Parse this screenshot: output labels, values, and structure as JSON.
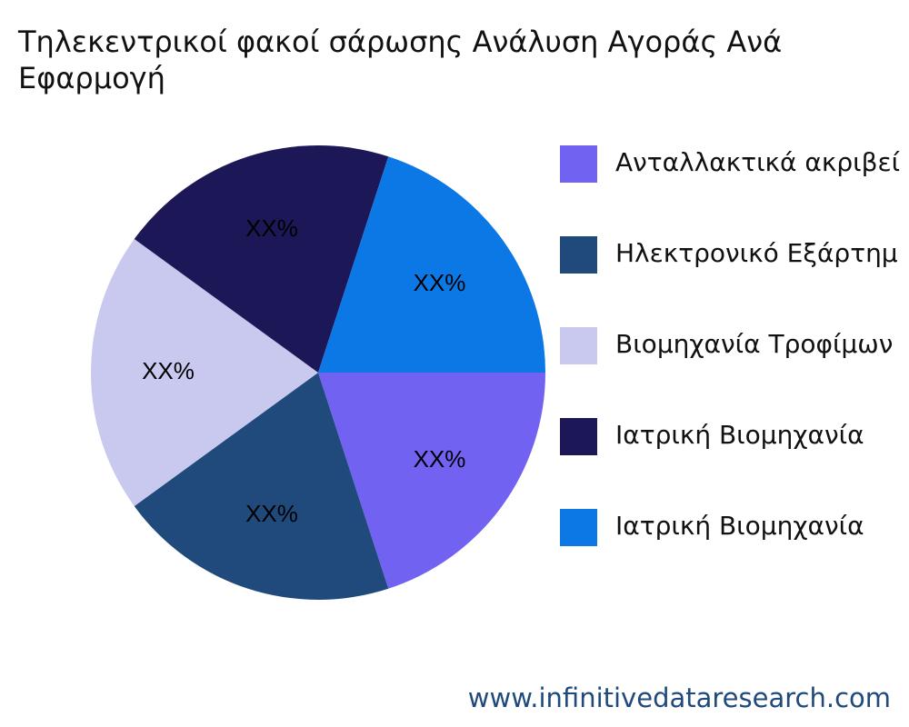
{
  "chart_data": {
    "type": "pie",
    "title_lines": [
      "Τηλεκεντρικοί φακοί σάρωσης Ανάλυση Αγοράς Ανά",
      "Εφαρμογή"
    ],
    "categories": [
      "Ανταλλακτικά ακριβεί",
      "Ηλεκτρονικό Εξάρτημ",
      "Βιομηχανία Τροφίμων",
      "Ιατρική Βιομηχανία",
      "Ιατρική Βιομηχανία"
    ],
    "values": [
      20,
      20,
      20,
      20,
      20
    ],
    "value_labels": [
      "XX%",
      "XX%",
      "XX%",
      "XX%",
      "XX%"
    ],
    "colors": [
      "#7262f2",
      "#1f4a7b",
      "#c9c8ef",
      "#1c1756",
      "#0b78e6"
    ],
    "legend": "right",
    "source": "www.infinitivedataresearch.com"
  }
}
